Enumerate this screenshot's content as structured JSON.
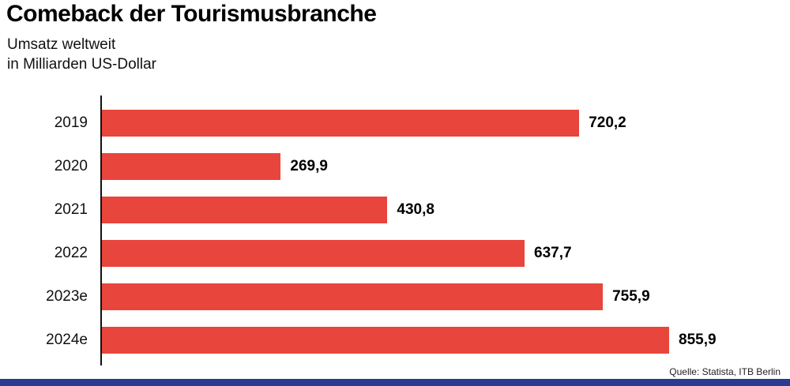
{
  "header": {
    "title": "Comeback der Tourismusbranche",
    "subtitle_line1": "Umsatz weltweit",
    "subtitle_line2": "in Milliarden US-Dollar"
  },
  "footer": {
    "source": "Quelle: Statista, ITB Berlin"
  },
  "colors": {
    "bar": "#e8453c",
    "accent_strip": "#2b3990",
    "axis": "#111111"
  },
  "chart_data": {
    "type": "bar",
    "orientation": "horizontal",
    "title": "Comeback der Tourismusbranche",
    "subtitle": "Umsatz weltweit in Milliarden US-Dollar",
    "categories": [
      "2019",
      "2020",
      "2021",
      "2022",
      "2023e",
      "2024e"
    ],
    "values": [
      720.2,
      269.9,
      430.8,
      637.7,
      755.9,
      855.9
    ],
    "value_labels": [
      "720,2",
      "269,9",
      "430,8",
      "637,7",
      "755,9",
      "855,9"
    ],
    "xlabel": "",
    "ylabel": "",
    "xlim": [
      0,
      900
    ],
    "grid": false,
    "legend": false,
    "value_labels_position": "end-of-bar",
    "source": "Quelle: Statista, ITB Berlin"
  }
}
